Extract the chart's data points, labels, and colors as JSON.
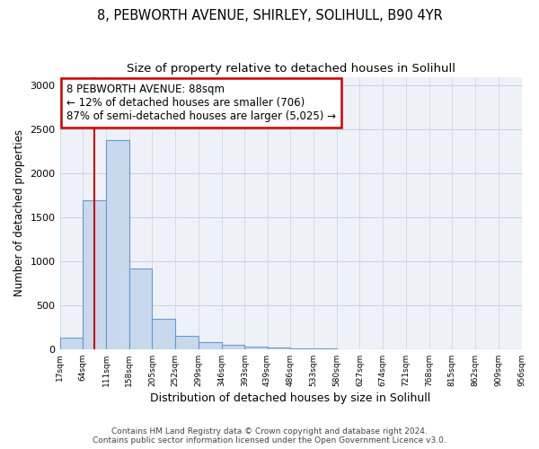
{
  "title1": "8, PEBWORTH AVENUE, SHIRLEY, SOLIHULL, B90 4YR",
  "title2": "Size of property relative to detached houses in Solihull",
  "xlabel": "Distribution of detached houses by size in Solihull",
  "ylabel": "Number of detached properties",
  "bin_edges": [
    17,
    64,
    111,
    158,
    205,
    252,
    299,
    346,
    393,
    439,
    486,
    533,
    580,
    627,
    674,
    721,
    768,
    815,
    862,
    909,
    956
  ],
  "bar_heights": [
    130,
    1700,
    2380,
    920,
    345,
    155,
    80,
    45,
    30,
    15,
    8,
    5,
    3,
    0,
    0,
    0,
    0,
    0,
    0,
    0
  ],
  "bar_color": "#c8d9ee",
  "bar_edge_color": "#6699cc",
  "property_size": 88,
  "annotation_text_line1": "8 PEBWORTH AVENUE: 88sqm",
  "annotation_text_line2": "← 12% of detached houses are smaller (706)",
  "annotation_text_line3": "87% of semi-detached houses are larger (5,025) →",
  "annotation_box_facecolor": "#ffffff",
  "annotation_box_edgecolor": "#cc0000",
  "vline_color": "#cc0000",
  "footer1": "Contains HM Land Registry data © Crown copyright and database right 2024.",
  "footer2": "Contains public sector information licensed under the Open Government Licence v3.0.",
  "bg_color": "#eef2f8",
  "ylim": [
    0,
    3100
  ],
  "xlim_left": 17,
  "xlim_right": 956
}
